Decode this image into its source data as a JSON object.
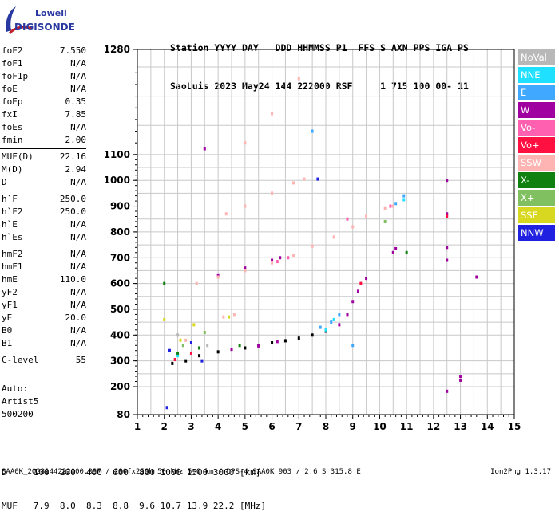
{
  "logo": {
    "brand_top": "Lowell",
    "brand_main": "DIGISONDE"
  },
  "header": {
    "line1": "Station YYYY DAY   DDD HHMMSS P1  FFS S AXN PPS IGA PS",
    "line2": "SaoLuis 2023 May24 144 222000 RSF     1 715 100 00- 11"
  },
  "params": [
    [
      {
        "name": "foF2",
        "value": "7.550"
      },
      {
        "name": "foF1",
        "value": "N/A"
      },
      {
        "name": "foF1p",
        "value": "N/A"
      },
      {
        "name": "foE",
        "value": "N/A"
      },
      {
        "name": "foEp",
        "value": "0.35"
      },
      {
        "name": "fxI",
        "value": "7.85"
      },
      {
        "name": "foEs",
        "value": "N/A"
      },
      {
        "name": "fmin",
        "value": "2.00"
      }
    ],
    [
      {
        "name": "MUF(D)",
        "value": "22.16"
      },
      {
        "name": "M(D)",
        "value": "2.94"
      },
      {
        "name": "D",
        "value": "N/A"
      }
    ],
    [
      {
        "name": "h`F",
        "value": "250.0"
      },
      {
        "name": "h`F2",
        "value": "250.0"
      },
      {
        "name": "h`E",
        "value": "N/A"
      },
      {
        "name": "h`Es",
        "value": "N/A"
      }
    ],
    [
      {
        "name": "hmF2",
        "value": "N/A"
      },
      {
        "name": "hmF1",
        "value": "N/A"
      },
      {
        "name": "hmE",
        "value": "110.0"
      },
      {
        "name": "yF2",
        "value": "N/A"
      },
      {
        "name": "yF1",
        "value": "N/A"
      },
      {
        "name": "yE",
        "value": "20.0"
      },
      {
        "name": "B0",
        "value": "N/A"
      },
      {
        "name": "B1",
        "value": "N/A"
      }
    ],
    [
      {
        "name": "C-level",
        "value": "55"
      }
    ]
  ],
  "auto": {
    "line1": "Auto:",
    "line2": "Artist5",
    "line3": "500200"
  },
  "legend": [
    {
      "label": "NoVal",
      "color": "#b8b8b8"
    },
    {
      "label": "NNE",
      "color": "#20e0ff"
    },
    {
      "label": "E",
      "color": "#40a8ff"
    },
    {
      "label": "W",
      "color": "#a000a0"
    },
    {
      "label": "Vo-",
      "color": "#ff60b0"
    },
    {
      "label": "Vo+",
      "color": "#ff1040"
    },
    {
      "label": "SSW",
      "color": "#ffb4b4"
    },
    {
      "label": "X-",
      "color": "#108010"
    },
    {
      "label": "X+",
      "color": "#80c060"
    },
    {
      "label": "SSE",
      "color": "#d8d820"
    },
    {
      "label": "NNW",
      "color": "#2020e0"
    }
  ],
  "footer": {
    "d_line": "D     100  200  400  600  800 1000 1500 3000 [km]",
    "muf_line": "MUF   7.9  8.0  8.3  8.8  9.6 10.7 13.9 22.2 [MHz]",
    "file_line": "SAA0K_2023144222000.RSF / 280fx256h 50 kHz 5.0 km / DPS-4 SAA0K 903 / 2.6 S 315.8 E",
    "version": "Ion2Png 1.3.17"
  },
  "chart_data": {
    "type": "scatter",
    "xlim": [
      1,
      15
    ],
    "ylim": [
      80,
      1280
    ],
    "x_ticks": [
      1,
      2,
      3,
      4,
      5,
      6,
      7,
      8,
      9,
      10,
      11,
      12,
      13,
      14,
      15
    ],
    "y_ticks": [
      80,
      200,
      300,
      400,
      500,
      600,
      700,
      800,
      900,
      1000,
      1100,
      1280
    ],
    "grid": true,
    "legend_position": "right",
    "series": [
      {
        "color": "#000000",
        "values": [
          [
            2.3,
            290
          ],
          [
            2.8,
            300
          ],
          [
            3.3,
            320
          ],
          [
            4.0,
            335
          ],
          [
            4.5,
            345
          ],
          [
            5.0,
            350
          ],
          [
            5.5,
            360
          ],
          [
            6.0,
            370
          ],
          [
            6.5,
            378
          ],
          [
            7.0,
            388
          ],
          [
            7.5,
            400
          ],
          [
            8.0,
            415
          ]
        ]
      },
      {
        "color": "#a000a0",
        "values": [
          [
            4.5,
            345
          ],
          [
            5.5,
            358
          ],
          [
            6.2,
            375
          ],
          [
            8.5,
            440
          ],
          [
            8.8,
            480
          ],
          [
            9.0,
            530
          ],
          [
            9.2,
            570
          ],
          [
            9.5,
            620
          ],
          [
            10.5,
            720
          ],
          [
            10.6,
            735
          ],
          [
            4.0,
            630
          ],
          [
            5.0,
            660
          ],
          [
            6.0,
            690
          ],
          [
            6.3,
            700
          ],
          [
            3.5,
            1110
          ],
          [
            12.5,
            1000
          ],
          [
            12.5,
            870
          ],
          [
            12.5,
            740
          ],
          [
            12.5,
            690
          ],
          [
            13.0,
            240
          ],
          [
            13.0,
            225
          ],
          [
            12.5,
            180
          ],
          [
            13.6,
            625
          ]
        ]
      },
      {
        "color": "#40a8ff",
        "values": [
          [
            7.8,
            430
          ],
          [
            8.2,
            450
          ],
          [
            8.5,
            480
          ],
          [
            10.9,
            940
          ],
          [
            10.6,
            910
          ],
          [
            7.5,
            1140
          ],
          [
            9.0,
            360
          ]
        ]
      },
      {
        "color": "#20e0ff",
        "values": [
          [
            8.0,
            420
          ],
          [
            8.3,
            460
          ],
          [
            10.9,
            925
          ],
          [
            2.5,
            320
          ]
        ]
      },
      {
        "color": "#ffb4b4",
        "values": [
          [
            3.2,
            600
          ],
          [
            4.0,
            625
          ],
          [
            5.0,
            650
          ],
          [
            6.0,
            680
          ],
          [
            6.8,
            710
          ],
          [
            7.5,
            745
          ],
          [
            8.3,
            780
          ],
          [
            9.0,
            820
          ],
          [
            9.5,
            860
          ],
          [
            10.2,
            890
          ],
          [
            10.5,
            900
          ],
          [
            4.3,
            870
          ],
          [
            5.0,
            900
          ],
          [
            6.0,
            950
          ],
          [
            6.8,
            990
          ],
          [
            7.2,
            1005
          ],
          [
            5.0,
            1120
          ],
          [
            6.0,
            1170
          ],
          [
            7.0,
            1230
          ],
          [
            4.2,
            470
          ],
          [
            4.6,
            480
          ],
          [
            2.8,
            380
          ]
        ]
      },
      {
        "color": "#ff60b0",
        "values": [
          [
            6.2,
            685
          ],
          [
            6.6,
            700
          ],
          [
            10.4,
            900
          ],
          [
            8.8,
            850
          ]
        ]
      },
      {
        "color": "#ff1040",
        "values": [
          [
            2.4,
            305
          ],
          [
            3.0,
            330
          ],
          [
            9.3,
            600
          ],
          [
            12.5,
            860
          ]
        ]
      },
      {
        "color": "#108010",
        "values": [
          [
            2.5,
            330
          ],
          [
            3.3,
            350
          ],
          [
            4.8,
            360
          ],
          [
            11.0,
            720
          ],
          [
            2.0,
            600
          ]
        ]
      },
      {
        "color": "#80c060",
        "values": [
          [
            2.7,
            360
          ],
          [
            3.5,
            410
          ],
          [
            10.2,
            840
          ]
        ]
      },
      {
        "color": "#d8d820",
        "values": [
          [
            2.6,
            380
          ],
          [
            3.1,
            440
          ],
          [
            2.0,
            460
          ],
          [
            4.4,
            470
          ]
        ]
      },
      {
        "color": "#2020e0",
        "values": [
          [
            2.2,
            340
          ],
          [
            3.0,
            370
          ],
          [
            3.4,
            300
          ],
          [
            7.7,
            1005
          ],
          [
            2.1,
            110
          ]
        ]
      },
      {
        "color": "#b8b8b8",
        "values": [
          [
            2.5,
            400
          ],
          [
            3.6,
            360
          ]
        ]
      }
    ]
  }
}
